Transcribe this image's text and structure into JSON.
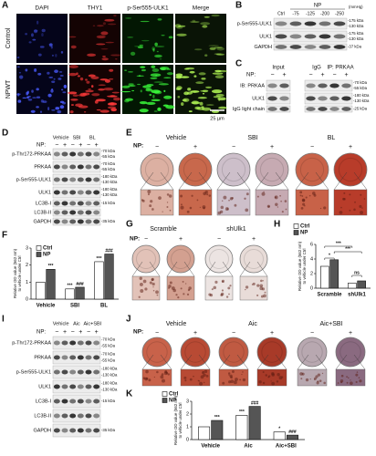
{
  "figure": {
    "A": {
      "label": "A",
      "columns": [
        "DAPI",
        "THY1",
        "p-Ser555-ULK1",
        "Merge"
      ],
      "rows": [
        "Control",
        "NPWT"
      ],
      "scale_bar": "25 µm"
    },
    "B": {
      "label": "B",
      "group": "NP",
      "unit": "(mmHg)",
      "lanes": [
        "Ctrl",
        "-75",
        "-125",
        "-200",
        "-250"
      ],
      "rows": [
        {
          "name": "p-Ser555-ULK1",
          "kda": [
            "-175 kDa",
            "-130 kDa"
          ]
        },
        {
          "name": "ULK1",
          "kda": [
            "-175 kDa",
            "-130 kDa"
          ]
        },
        {
          "name": "GAPDH",
          "kda": [
            "-37 kDa"
          ]
        }
      ]
    },
    "C": {
      "label": "C",
      "np_label": "NP:",
      "groups": [
        "Input",
        "IgG",
        "IP: PRKAA"
      ],
      "signs": [
        "−",
        "+",
        "−",
        "+",
        "−",
        "+"
      ],
      "rows": [
        {
          "name": "IB: PRKAA",
          "kda": [
            "-70 kDa",
            "-55 kDa"
          ]
        },
        {
          "name": "ULK1",
          "kda": [
            "-180 kDa",
            "-130 kDa"
          ]
        },
        {
          "name": "IgG light chain",
          "kda": [
            "-25 kDa"
          ]
        }
      ]
    },
    "D": {
      "label": "D",
      "np_label": "NP:",
      "groups": [
        "Vehicle",
        "SBI",
        "BL"
      ],
      "signs": [
        "−",
        "+",
        "−",
        "+",
        "−",
        "+"
      ],
      "rows": [
        {
          "name": "p-Thr172-PRKAA",
          "kda": [
            "-70 kDa",
            "-55 kDa"
          ]
        },
        {
          "name": "PRKAA",
          "kda": [
            "-70 kDa",
            "-55 kDa"
          ]
        },
        {
          "name": "p-Ser555-ULK1",
          "kda": [
            "-180 kDa",
            "-130 kDa"
          ]
        },
        {
          "name": "ULK1",
          "kda": [
            "-180 kDa",
            "-130 kDa"
          ]
        },
        {
          "name": "LC3B-I",
          "kda": [
            "-15 kDa"
          ]
        },
        {
          "name": "LC3B-II"
        },
        {
          "name": "GAPDH",
          "kda": [
            "-35 kDa"
          ]
        }
      ]
    },
    "E": {
      "label": "E",
      "np_label": "NP:",
      "groups": [
        "Vehicle",
        "SBI",
        "BL"
      ],
      "signs": [
        "−",
        "+",
        "−",
        "+",
        "−",
        "+"
      ]
    },
    "F": {
      "label": "F",
      "type": "bar",
      "ylabel": [
        "Relative OD value (562 nm)",
        "to vehicle under Ctrl"
      ],
      "categories": [
        "Vehicle",
        "SBI",
        "BL"
      ],
      "series": [
        {
          "name": "Ctrl",
          "color": "#ffffff",
          "values": [
            1.0,
            0.6,
            2.2
          ],
          "labels": [
            null,
            "***",
            "***"
          ]
        },
        {
          "name": "NP",
          "color": "#555555",
          "values": [
            1.75,
            0.7,
            2.65
          ],
          "labels": [
            "***",
            "###",
            "###"
          ]
        }
      ],
      "ylim": [
        0,
        3
      ],
      "yticks": [
        0,
        1,
        2,
        3
      ]
    },
    "G": {
      "label": "G",
      "np_label": "NP:",
      "groups": [
        "Scramble",
        "shUlk1"
      ],
      "signs": [
        "−",
        "+",
        "−",
        "+"
      ]
    },
    "H": {
      "label": "H",
      "type": "bar",
      "ylabel": [
        "Relative OD value (562 nm)",
        "to vehicle under Ctrl"
      ],
      "categories": [
        "Scramble",
        "shUlk1"
      ],
      "series": [
        {
          "name": "Ctrl",
          "color": "#ffffff",
          "values": [
            3.0,
            0.7
          ]
        },
        {
          "name": "NP",
          "color": "#555555",
          "values": [
            3.9,
            1.0
          ]
        }
      ],
      "ylim": [
        0,
        6
      ],
      "yticks": [
        0,
        2,
        4,
        6
      ],
      "comparisons": [
        "***",
        "*",
        "***",
        "ns"
      ]
    },
    "I": {
      "label": "I",
      "np_label": "NP:",
      "groups": [
        "Vehicle",
        "Aic",
        "Aic+SBI"
      ],
      "signs": [
        "−",
        "+",
        "−",
        "+",
        "−",
        "+"
      ],
      "rows": [
        {
          "name": "p-Thr172-PRKAA",
          "kda": [
            "-70 kDa",
            "-55 kDa"
          ]
        },
        {
          "name": "PRKAA",
          "kda": [
            "-70 kDa",
            "-55 kDa"
          ]
        },
        {
          "name": "p-Ser555-ULK1",
          "kda": [
            "-180 kDa",
            "-130 kDa"
          ]
        },
        {
          "name": "ULK1",
          "kda": [
            "-180 kDa",
            "-130 kDa"
          ]
        },
        {
          "name": "LC3B-I",
          "kda": [
            "-15 kDa"
          ]
        },
        {
          "name": "LC3B-II"
        },
        {
          "name": "GAPDH",
          "kda": [
            "-35 kDa"
          ]
        }
      ]
    },
    "J": {
      "label": "J",
      "np_label": "NP:",
      "groups": [
        "Vehicle",
        "Aic",
        "Aic+SBI"
      ],
      "signs": [
        "−",
        "+",
        "−",
        "+",
        "−",
        "+"
      ]
    },
    "K": {
      "label": "K",
      "type": "bar",
      "ylabel": [
        "Relative OD value (562 nm)",
        "to vehicle under Ctrl"
      ],
      "categories": [
        "Vehicle",
        "Aic",
        "Aic+SBI"
      ],
      "series": [
        {
          "name": "Ctrl",
          "color": "#ffffff",
          "values": [
            1.0,
            1.9,
            0.6
          ],
          "labels": [
            null,
            "***",
            "*"
          ]
        },
        {
          "name": "NP",
          "color": "#555555",
          "values": [
            1.5,
            2.6,
            0.35
          ],
          "labels": [
            "***",
            "###",
            "###"
          ]
        }
      ],
      "ylim": [
        0,
        3
      ],
      "yticks": [
        0,
        1,
        2,
        3
      ]
    }
  }
}
